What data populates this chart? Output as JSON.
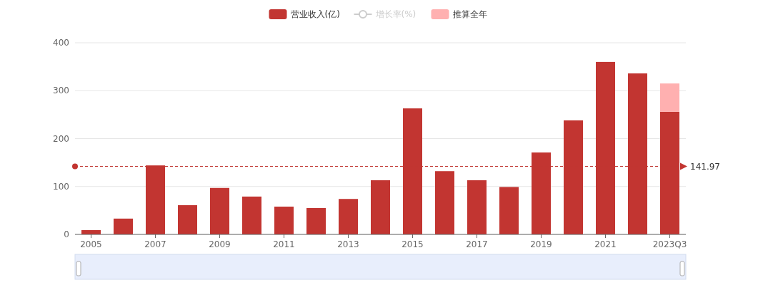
{
  "chart_data": {
    "type": "bar",
    "stacked": true,
    "categories": [
      "2005",
      null,
      "2007",
      null,
      "2009",
      null,
      "2011",
      null,
      "2013",
      null,
      "2015",
      null,
      "2017",
      null,
      "2019",
      null,
      "2021",
      null,
      "2023Q3"
    ],
    "series": [
      {
        "name": "营业收入(亿)",
        "color": "#c23531",
        "values": [
          9,
          33,
          144,
          61,
          97,
          79,
          58,
          55,
          74,
          113,
          263,
          132,
          113,
          99,
          171,
          238,
          360,
          336,
          256
        ]
      },
      {
        "name": "增长率(%)",
        "type": "line",
        "color": "#cccccc",
        "values": [
          null,
          null,
          null,
          null,
          null,
          null,
          null,
          null,
          null,
          null,
          null,
          null,
          null,
          null,
          null,
          null,
          null,
          null,
          null
        ]
      },
      {
        "name": "推算全年",
        "color": "#ffb0b0",
        "values": [
          null,
          null,
          null,
          null,
          null,
          null,
          null,
          null,
          null,
          null,
          null,
          null,
          null,
          null,
          null,
          null,
          null,
          null,
          59
        ]
      }
    ],
    "ylim": [
      0,
      400
    ],
    "yticks": [
      0,
      100,
      200,
      300,
      400
    ],
    "grid": "y",
    "legend": "top",
    "ref_lines": [
      {
        "axis": "y",
        "value": 141.97,
        "label": "141.97",
        "color": "#c23531",
        "line_style": "dashed"
      }
    ]
  }
}
